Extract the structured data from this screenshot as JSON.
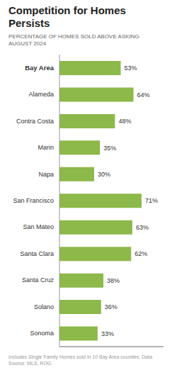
{
  "chart_data": {
    "type": "bar",
    "title": "Competition for Homes Persists",
    "subtitle": [
      "PERCENTAGE OF HOMES SOLD ABOVE ASKING",
      "AUGUST 2024"
    ],
    "annotations": [
      "Includes Single Family Homes sold in 10 Bay Area counties. Data Source: MLS, ROG."
    ],
    "orientation": "horizontal",
    "categories": [
      "Bay Area",
      "Alameda",
      "Contra Costa",
      "Marin",
      "Napa",
      "San Francisco",
      "San Mateo",
      "Santa Clara",
      "Santa Cruz",
      "Solano",
      "Sonoma"
    ],
    "values": [
      53,
      64,
      48,
      35,
      30,
      71,
      63,
      62,
      38,
      36,
      33
    ],
    "value_labels": [
      "53%",
      "64%",
      "48%",
      "35%",
      "30%",
      "71%",
      "63%",
      "62%",
      "38%",
      "36%",
      "33%"
    ],
    "data_labels": true,
    "color": "#8db84a",
    "xlim": [
      0,
      90
    ],
    "tick_labels": "y",
    "grid": false
  }
}
